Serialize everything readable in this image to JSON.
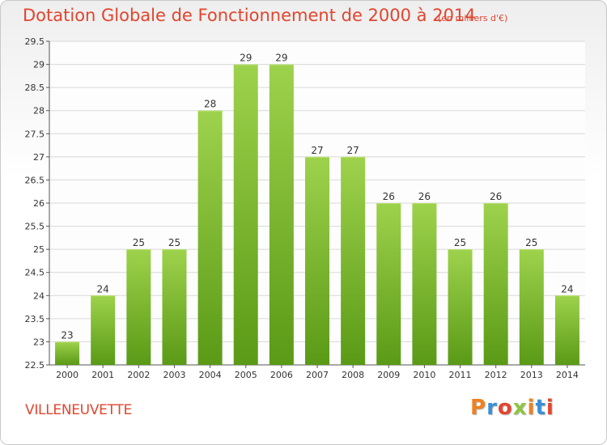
{
  "title": "Dotation Globale de Fonctionnement de 2000 à 2014",
  "unit": "(en milliers d'€)",
  "commune": "VILLENEUVETTE",
  "logo": {
    "letters": [
      "P",
      "r",
      "o",
      "x",
      "i",
      "t",
      "i"
    ],
    "colors": [
      "#f08020",
      "#3a8fd6",
      "#e2452e",
      "#8dc63f",
      "#f08020",
      "#3a8fd6",
      "#e2452e"
    ]
  },
  "colors": {
    "bar_top": "#9ed24c",
    "bar_bottom": "#5a9a16",
    "title": "#e2452e"
  },
  "chart_data": {
    "type": "bar",
    "categories": [
      "2000",
      "2001",
      "2002",
      "2003",
      "2004",
      "2005",
      "2006",
      "2007",
      "2008",
      "2009",
      "2010",
      "2011",
      "2012",
      "2013",
      "2014"
    ],
    "values": [
      23,
      24,
      25,
      25,
      28,
      29,
      29,
      27,
      27,
      26,
      26,
      25,
      26,
      25,
      24
    ],
    "ylim": [
      22.5,
      29.5
    ],
    "yticks": [
      "22.5",
      "23",
      "23.5",
      "24",
      "24.5",
      "25",
      "25.5",
      "26",
      "26.5",
      "27",
      "27.5",
      "28",
      "28.5",
      "29",
      "29.5"
    ],
    "grid": true
  }
}
